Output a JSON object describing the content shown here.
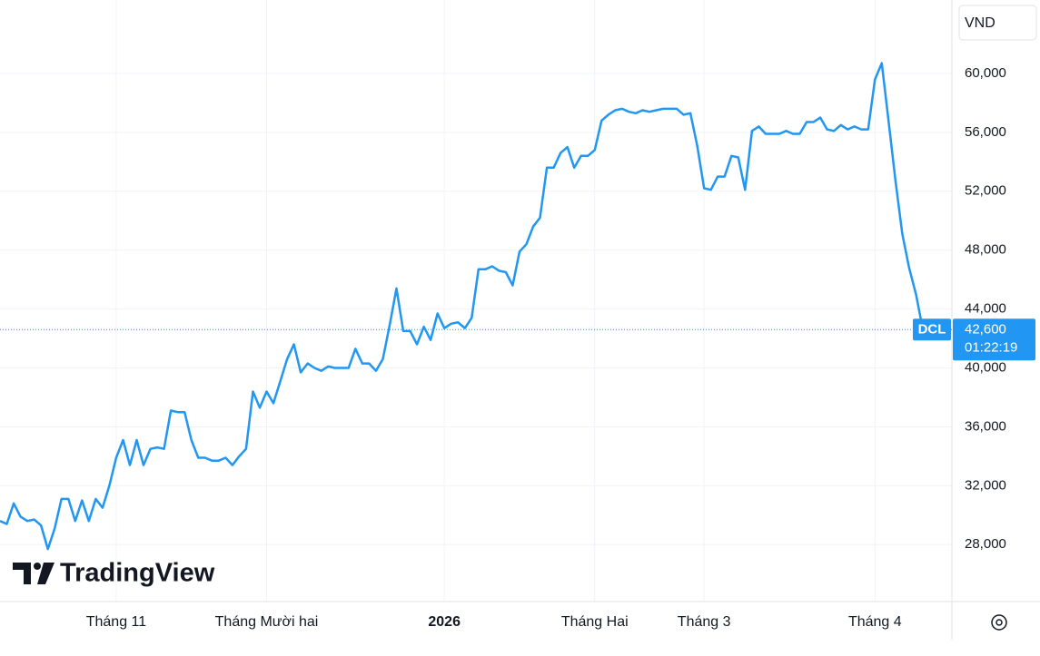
{
  "chart_data": {
    "type": "line",
    "currency": "VND",
    "logo": "TradingView",
    "categories": [
      null,
      null,
      null,
      null,
      null,
      null,
      null,
      null,
      null,
      null,
      null,
      null,
      null,
      null,
      null,
      null,
      null,
      "Tháng 11",
      null,
      null,
      null,
      null,
      null,
      null,
      null,
      null,
      null,
      null,
      null,
      null,
      null,
      null,
      null,
      null,
      null,
      null,
      null,
      null,
      null,
      "Tháng Mười hai",
      null,
      null,
      null,
      null,
      null,
      null,
      null,
      null,
      null,
      null,
      null,
      null,
      null,
      null,
      null,
      null,
      null,
      null,
      null,
      null,
      null,
      null,
      null,
      null,
      null,
      "2026",
      null,
      null,
      null,
      null,
      null,
      null,
      null,
      null,
      null,
      null,
      null,
      null,
      null,
      null,
      null,
      null,
      null,
      null,
      null,
      null,
      null,
      "Tháng Hai",
      null,
      null,
      null,
      null,
      null,
      null,
      null,
      null,
      null,
      null,
      null,
      null,
      null,
      null,
      null,
      "Tháng 3",
      null,
      null,
      null,
      null,
      null,
      null,
      null,
      null,
      null,
      null,
      null,
      null,
      null,
      null,
      null,
      null,
      null,
      null,
      null,
      null,
      null,
      null,
      null,
      null,
      "Tháng 4",
      null,
      null,
      null,
      null,
      null,
      null,
      null
    ],
    "series": [
      {
        "name": "DCL",
        "color": "#2196f3",
        "values": [
          29600,
          29400,
          30800,
          29900,
          29600,
          29700,
          29300,
          27700,
          29100,
          31100,
          31100,
          29600,
          31000,
          29600,
          31100,
          30500,
          32000,
          33900,
          35100,
          33400,
          35100,
          33400,
          34500,
          34600,
          34500,
          37100,
          37000,
          37000,
          35100,
          33900,
          33900,
          33700,
          33700,
          33900,
          33400,
          34000,
          34500,
          38400,
          37300,
          38400,
          37600,
          39100,
          40600,
          41600,
          39700,
          40300,
          40000,
          39800,
          40100,
          40000,
          40000,
          40000,
          41300,
          40300,
          40300,
          39800,
          40600,
          42900,
          45400,
          42500,
          42500,
          41600,
          42800,
          41900,
          43700,
          42700,
          43000,
          43100,
          42700,
          43400,
          46700,
          46700,
          46900,
          46600,
          46500,
          45600,
          47900,
          48400,
          49600,
          50200,
          53600,
          53600,
          54600,
          55000,
          53600,
          54400,
          54400,
          54800,
          56800,
          57200,
          57500,
          57600,
          57400,
          57300,
          57500,
          57400,
          57500,
          57600,
          57600,
          57600,
          57200,
          57300,
          55100,
          52200,
          52100,
          53000,
          53000,
          54400,
          54300,
          52100,
          56100,
          56400,
          55900,
          55900,
          55900,
          56100,
          55900,
          55900,
          56700,
          56700,
          57000,
          56200,
          56100,
          56500,
          56200,
          56400,
          56200,
          56200,
          59600,
          60700,
          56700,
          52700,
          49100,
          46800,
          45000,
          42600
        ]
      }
    ],
    "price_label": {
      "value": 42600,
      "label": "42,600"
    },
    "countdown": "01:22:19",
    "ylim": [
      24130,
      64990
    ],
    "yticks": [
      {
        "value": 28000,
        "label": "28,000"
      },
      {
        "value": 32000,
        "label": "32,000"
      },
      {
        "value": 36000,
        "label": "36,000"
      },
      {
        "value": 40000,
        "label": "40,000"
      },
      {
        "value": 44000,
        "label": "44,000"
      },
      {
        "value": 48000,
        "label": "48,000"
      },
      {
        "value": 52000,
        "label": "52,000"
      },
      {
        "value": 56000,
        "label": "56,000"
      },
      {
        "value": 60000,
        "label": "60,000"
      }
    ],
    "grid": true
  }
}
